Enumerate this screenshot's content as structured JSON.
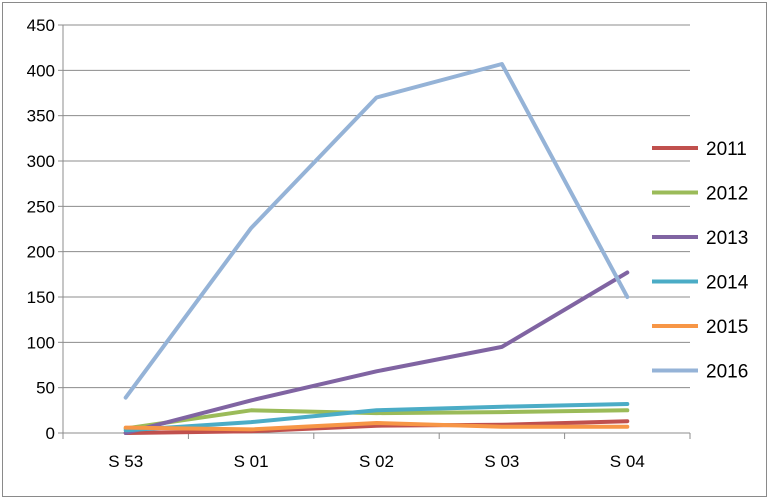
{
  "chart_data": {
    "type": "line",
    "title": "",
    "xlabel": "",
    "ylabel": "",
    "categories": [
      "S 53",
      "S 01",
      "S 02",
      "S 03",
      "S 04"
    ],
    "ylim": [
      0,
      450
    ],
    "yticks": [
      "0",
      "50",
      "100",
      "150",
      "200",
      "250",
      "300",
      "350",
      "400",
      "450"
    ],
    "grid": "horizontal",
    "legend": "right",
    "series": [
      {
        "name": "2011",
        "color": "#c0504d",
        "values": [
          0,
          2,
          8,
          9,
          13
        ]
      },
      {
        "name": "2012",
        "color": "#9bbb59",
        "values": [
          5,
          25,
          22,
          23,
          25
        ]
      },
      {
        "name": "2013",
        "color": "#8064a2",
        "values": [
          0,
          36,
          68,
          95,
          177
        ]
      },
      {
        "name": "2014",
        "color": "#4bacc6",
        "values": [
          3,
          12,
          25,
          29,
          32
        ]
      },
      {
        "name": "2015",
        "color": "#f79646",
        "values": [
          6,
          4,
          11,
          7,
          7
        ]
      },
      {
        "name": "2016",
        "color": "#95b3d7",
        "values": [
          39,
          226,
          370,
          407,
          150
        ]
      }
    ]
  }
}
